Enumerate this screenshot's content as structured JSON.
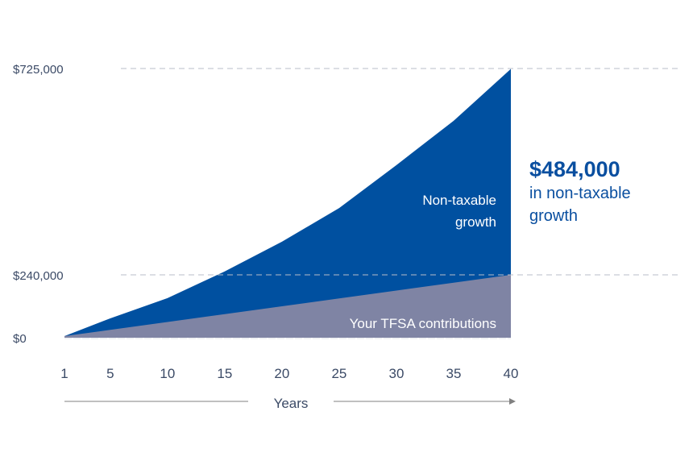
{
  "chart_data": {
    "type": "area",
    "stacked": true,
    "xlabel": "Years",
    "x_ticks": [
      1,
      5,
      10,
      15,
      20,
      25,
      30,
      35,
      40
    ],
    "y_ticks": [
      0,
      240000,
      725000
    ],
    "y_tick_labels": [
      "$0",
      "$240,000",
      "$725,000"
    ],
    "ylim": [
      0,
      725000
    ],
    "x": [
      1,
      5,
      10,
      15,
      20,
      25,
      30,
      35,
      40
    ],
    "series": [
      {
        "name": "Your TFSA contributions",
        "values": [
          6000,
          30000,
          60000,
          90000,
          120000,
          150000,
          180000,
          210000,
          240000
        ],
        "color": "#7f84a4"
      },
      {
        "name": "Non-taxable growth",
        "values": [
          0,
          44000,
          91000,
          158000,
          198000,
          247000,
          318000,
          392000,
          484000
        ],
        "color": "#0050a0"
      }
    ],
    "grid": "dashed horizontal at labeled ticks",
    "annotation": {
      "value": "$484,000",
      "text": "in non-taxable growth"
    }
  },
  "labels": {
    "growth_line1": "Non-taxable",
    "growth_line2": "growth",
    "contrib": "Your TFSA contributions",
    "ann_line1": "in non-taxable",
    "ann_line2": "growth"
  }
}
